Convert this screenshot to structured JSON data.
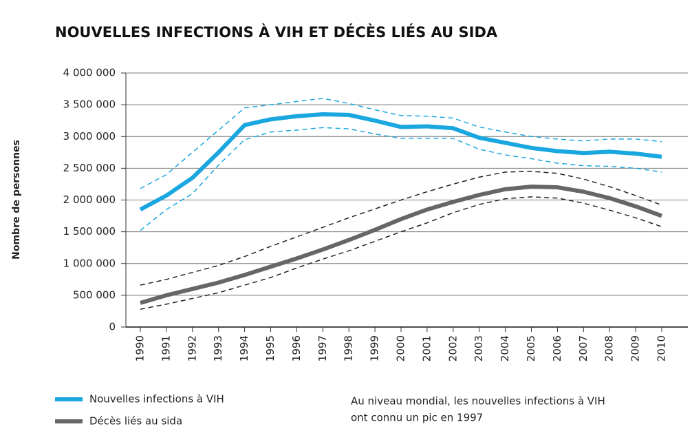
{
  "chart_data": {
    "type": "line",
    "title": "NOUVELLES INFECTIONS À VIH ET DÉCÈS LIÉS AU SIDA",
    "y_label": "Nombre de personnes",
    "categories": [
      "1990",
      "1991",
      "1992",
      "1993",
      "1994",
      "1995",
      "1996",
      "1997",
      "1998",
      "1999",
      "2000",
      "2001",
      "2002",
      "2003",
      "2004",
      "2005",
      "2006",
      "2007",
      "2008",
      "2009",
      "2010"
    ],
    "series": [
      {
        "name": "Nouvelles infections à VIH",
        "color": "#1aa7e0",
        "values": [
          1850000,
          2070000,
          2350000,
          2750000,
          3180000,
          3270000,
          3320000,
          3350000,
          3340000,
          3250000,
          3150000,
          3160000,
          3130000,
          2980000,
          2900000,
          2820000,
          2770000,
          2740000,
          2760000,
          2730000,
          2680000
        ],
        "upper": [
          2180000,
          2400000,
          2750000,
          3100000,
          3450000,
          3500000,
          3550000,
          3600000,
          3520000,
          3420000,
          3330000,
          3320000,
          3290000,
          3150000,
          3070000,
          3000000,
          2960000,
          2930000,
          2960000,
          2960000,
          2920000
        ],
        "lower": [
          1520000,
          1850000,
          2100000,
          2550000,
          2950000,
          3070000,
          3100000,
          3140000,
          3120000,
          3040000,
          2970000,
          2970000,
          2970000,
          2800000,
          2710000,
          2650000,
          2580000,
          2540000,
          2530000,
          2500000,
          2440000
        ],
        "bound_color": "#1aa7e0"
      },
      {
        "name": "Décès liés au sida",
        "color": "#666666",
        "values": [
          380000,
          500000,
          600000,
          700000,
          820000,
          950000,
          1080000,
          1220000,
          1370000,
          1530000,
          1700000,
          1850000,
          1970000,
          2080000,
          2170000,
          2210000,
          2200000,
          2130000,
          2030000,
          1900000,
          1750000
        ],
        "upper": [
          660000,
          750000,
          860000,
          970000,
          1110000,
          1270000,
          1420000,
          1570000,
          1720000,
          1860000,
          2000000,
          2130000,
          2250000,
          2360000,
          2440000,
          2450000,
          2420000,
          2330000,
          2210000,
          2070000,
          1920000
        ],
        "lower": [
          280000,
          360000,
          450000,
          540000,
          660000,
          780000,
          930000,
          1070000,
          1200000,
          1350000,
          1500000,
          1640000,
          1800000,
          1930000,
          2020000,
          2050000,
          2030000,
          1950000,
          1840000,
          1720000,
          1580000
        ],
        "bound_color": "#222222"
      }
    ],
    "ylim": [
      0,
      4000000
    ],
    "yticks": [
      0,
      {
        "value": 500000,
        "label": "500 000"
      },
      {
        "value": 1000000,
        "label": "1 000 000"
      },
      {
        "value": 1500000,
        "label": "1 500 000"
      },
      {
        "value": 2000000,
        "label": "2 000 000"
      },
      {
        "value": 2500000,
        "label": "2 500 000"
      },
      {
        "value": 3000000,
        "label": "3 000 000"
      },
      {
        "value": 3500000,
        "label": "3 500 000"
      },
      {
        "value": 4000000,
        "label": "4 000 000"
      }
    ],
    "grid": true,
    "legend": "bottom-left",
    "annotation": [
      "Au niveau mondial, les nouvelles infections à VIH",
      "ont connu un pic en 1997"
    ]
  }
}
